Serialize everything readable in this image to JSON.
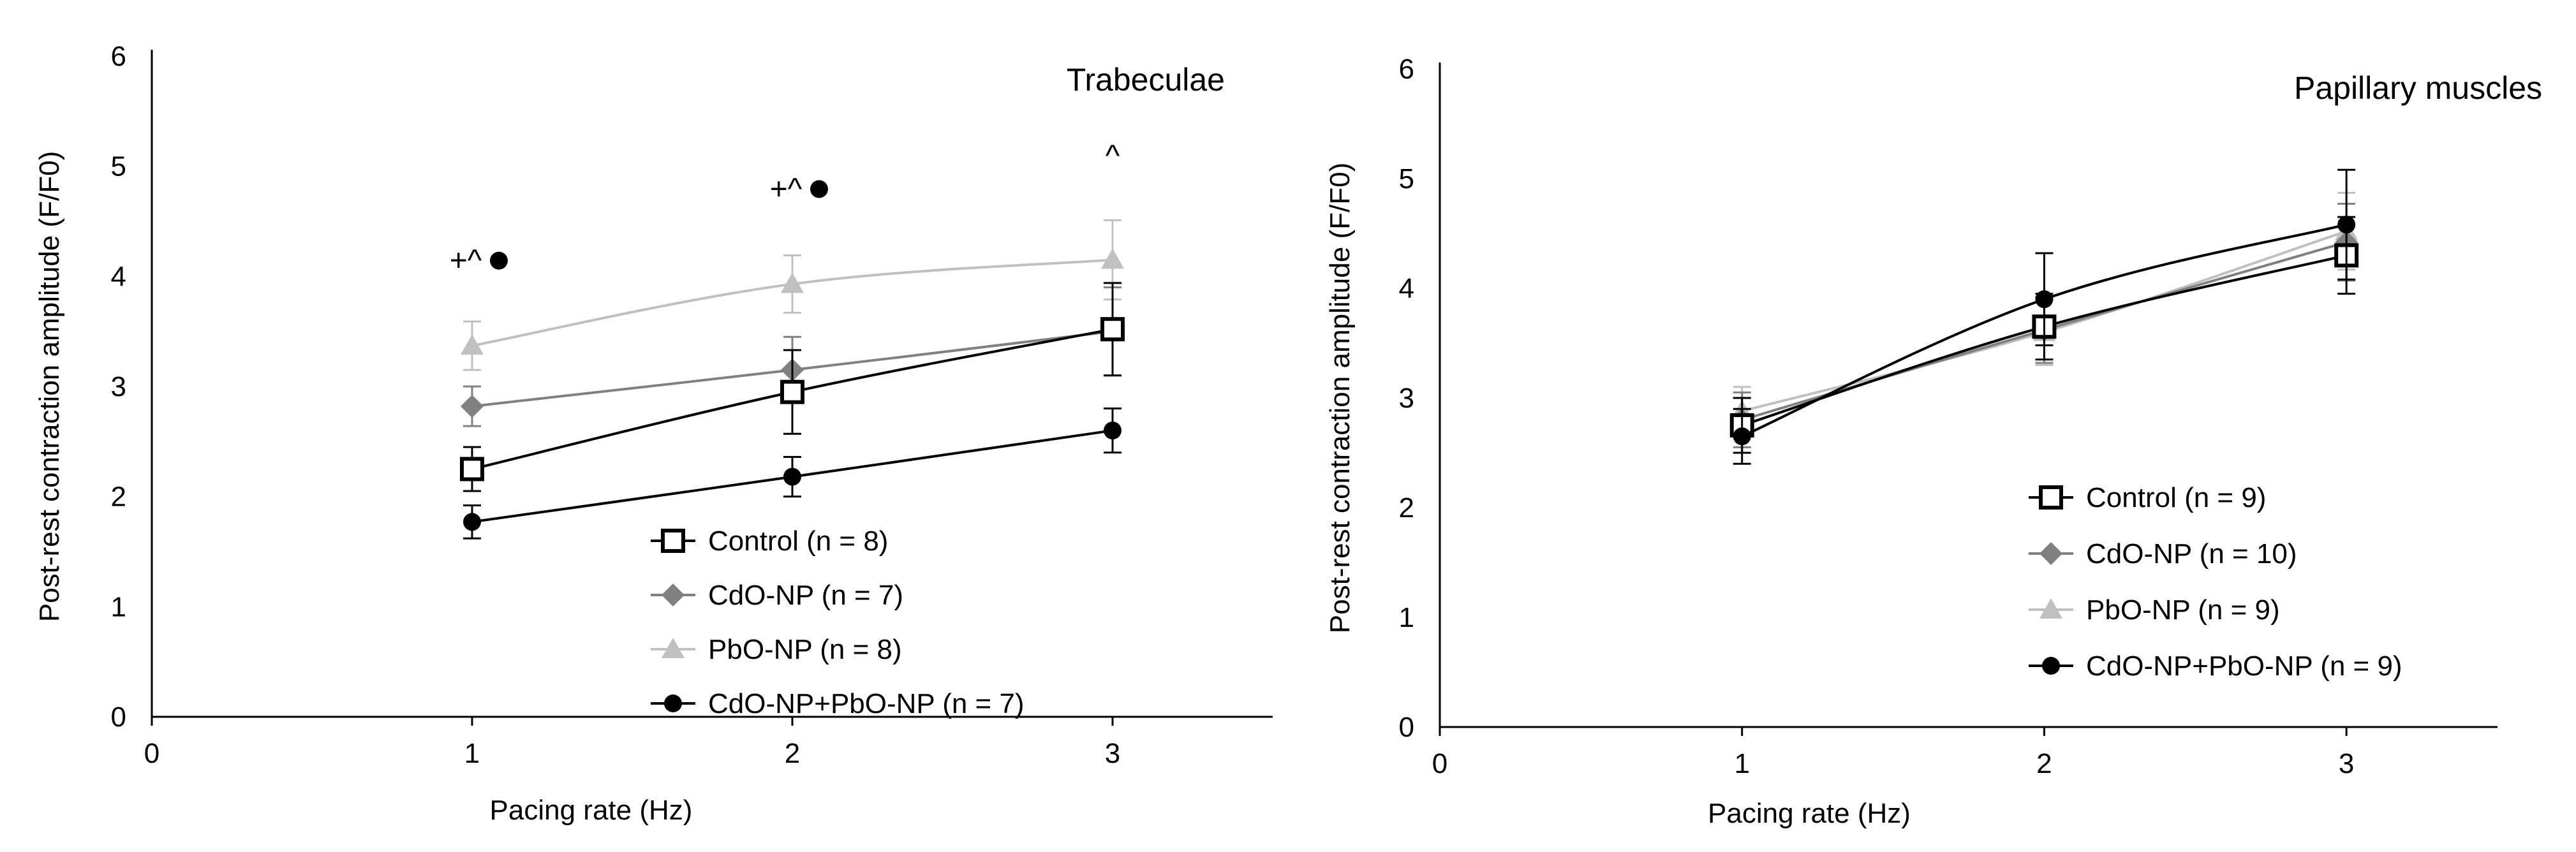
{
  "chart_data": [
    {
      "type": "line",
      "title": "Trabeculae",
      "xlabel": "Pacing rate (Hz)",
      "ylabel": "Post-rest contraction amplitude (F/F0)",
      "xlim": [
        0,
        3.5
      ],
      "ylim": [
        0,
        6
      ],
      "xticks": [
        0,
        1,
        2,
        3
      ],
      "yticks": [
        0,
        1,
        2,
        3,
        4,
        5,
        6
      ],
      "grid": false,
      "legend": "bottom-right",
      "x": [
        1,
        2,
        3
      ],
      "series": [
        {
          "name": "Control (n = 8)",
          "values": [
            2.25,
            2.95,
            3.52
          ],
          "errors": [
            0.2,
            0.38,
            0.42
          ],
          "color": "#000000",
          "marker": "square-open"
        },
        {
          "name": "CdO-NP (n = 7)",
          "values": [
            2.82,
            3.15,
            3.5
          ],
          "errors": [
            0.18,
            0.3,
            0.4
          ],
          "color": "#808080",
          "marker": "diamond"
        },
        {
          "name": "PbO-NP (n = 8)",
          "values": [
            3.37,
            3.93,
            4.15
          ],
          "errors": [
            0.22,
            0.26,
            0.36
          ],
          "color": "#c0c0c0",
          "marker": "triangle"
        },
        {
          "name": "CdO-NP+PbO-NP (n = 7)",
          "values": [
            1.77,
            2.18,
            2.6
          ],
          "errors": [
            0.15,
            0.18,
            0.2
          ],
          "color": "#000000",
          "marker": "circle"
        }
      ],
      "annotations": [
        {
          "text": "+^",
          "x": 1,
          "y": 4.05,
          "dot": true
        },
        {
          "text": "+^",
          "x": 2,
          "y": 4.7,
          "dot": true
        },
        {
          "text": "^",
          "x": 3,
          "y": 5.0,
          "dot": false
        }
      ]
    },
    {
      "type": "line",
      "title": "Papillary muscles",
      "xlabel": "Pacing rate (Hz)",
      "ylabel": "Post-rest contraction amplitude (F/F0)",
      "xlim": [
        0,
        3.5
      ],
      "ylim": [
        0,
        6
      ],
      "xticks": [
        0,
        1,
        2,
        3
      ],
      "yticks": [
        0,
        1,
        2,
        3,
        4,
        5,
        6
      ],
      "grid": false,
      "legend": "bottom-right",
      "x": [
        1,
        2,
        3
      ],
      "series": [
        {
          "name": "Control (n = 9)",
          "values": [
            2.75,
            3.65,
            4.3
          ],
          "errors": [
            0.25,
            0.3,
            0.35
          ],
          "color": "#000000",
          "marker": "square-open"
        },
        {
          "name": "CdO-NP (n = 10)",
          "values": [
            2.8,
            3.62,
            4.42
          ],
          "errors": [
            0.25,
            0.3,
            0.35
          ],
          "color": "#808080",
          "marker": "diamond"
        },
        {
          "name": "PbO-NP (n = 9)",
          "values": [
            2.88,
            3.6,
            4.52
          ],
          "errors": [
            0.22,
            0.3,
            0.35
          ],
          "color": "#c0c0c0",
          "marker": "triangle"
        },
        {
          "name": "CdO-NP+PbO-NP (n = 9)",
          "values": [
            2.65,
            3.9,
            4.58
          ],
          "errors": [
            0.25,
            0.42,
            0.5
          ],
          "color": "#000000",
          "marker": "circle"
        }
      ],
      "annotations": []
    }
  ]
}
